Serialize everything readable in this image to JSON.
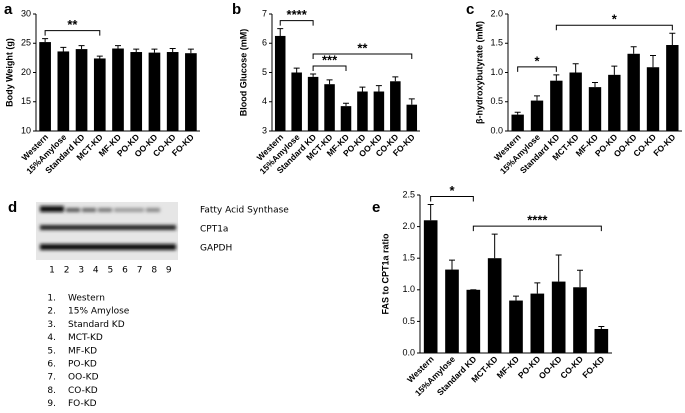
{
  "chart_data": [
    {
      "type": "bar",
      "panel_label": "a",
      "ylabel": "Body Weight (g)",
      "categories": [
        "Western",
        "15%Amylose",
        "Standard KD",
        "MCT-KD",
        "MF-KD",
        "PO-KD",
        "OO-KD",
        "CO-KD",
        "FO-KD"
      ],
      "values": [
        25.2,
        23.6,
        24.0,
        22.4,
        24.1,
        23.5,
        23.4,
        23.5,
        23.3
      ],
      "errors": [
        0.6,
        0.7,
        0.6,
        0.4,
        0.5,
        0.5,
        0.6,
        0.6,
        0.7
      ],
      "color": "#000000",
      "ylim": [
        10,
        30
      ],
      "yticks": [
        10,
        15,
        20,
        25,
        30
      ],
      "annotations": [
        {
          "text": "**",
          "from": "Western",
          "to": "MCT-KD"
        }
      ]
    },
    {
      "type": "bar",
      "panel_label": "b",
      "ylabel": "Blood Glucose (mM)",
      "categories": [
        "Western",
        "15%Amylose",
        "Standard KD",
        "MCT-KD",
        "MF-KD",
        "PO-KD",
        "OO-KD",
        "CO-KD",
        "FO-KD"
      ],
      "values": [
        6.25,
        5.0,
        4.85,
        4.6,
        3.85,
        4.35,
        4.35,
        4.7,
        3.9
      ],
      "errors": [
        0.25,
        0.15,
        0.1,
        0.15,
        0.1,
        0.15,
        0.2,
        0.15,
        0.2
      ],
      "color": "#000000",
      "ylim": [
        3,
        7
      ],
      "yticks": [
        3,
        4,
        5,
        6,
        7
      ],
      "annotations": [
        {
          "text": "****",
          "from": "Western",
          "to": "Standard KD"
        },
        {
          "text": "***",
          "from": "Standard KD",
          "to": "MF-KD"
        },
        {
          "text": "**",
          "from": "Standard KD",
          "to": "FO-KD"
        }
      ]
    },
    {
      "type": "bar",
      "panel_label": "c",
      "ylabel": "β-hydroxybutyrate (mM)",
      "categories": [
        "Western",
        "15%Amylose",
        "Standard KD",
        "MCT-KD",
        "MF-KD",
        "PO-KD",
        "OO-KD",
        "CO-KD",
        "FO-KD"
      ],
      "values": [
        0.28,
        0.52,
        0.86,
        1.0,
        0.75,
        0.96,
        1.32,
        1.09,
        1.47
      ],
      "errors": [
        0.04,
        0.08,
        0.1,
        0.15,
        0.08,
        0.15,
        0.12,
        0.2,
        0.2
      ],
      "color": "#000000",
      "ylim": [
        0,
        2
      ],
      "yticks": [
        {
          "value": 0,
          "label": "0.0"
        },
        0.5,
        {
          "value": 1,
          "label": "1.0"
        },
        1.5,
        {
          "value": 2,
          "label": "2.0"
        }
      ],
      "annotations": [
        {
          "text": "*",
          "from": "Western",
          "to": "Standard KD"
        },
        {
          "text": "*",
          "from": "Standard KD",
          "to": "FO-KD"
        }
      ]
    },
    {
      "type": "bar",
      "panel_label": "e",
      "ylabel": "FAS to CPT1a ratio",
      "categories": [
        "Western",
        "15%Amylose",
        "Standard KD",
        "MCT-KD",
        "MF-KD",
        "PO-KD",
        "OO-KD",
        "CO-KD",
        "FO-KD"
      ],
      "values": [
        2.1,
        1.32,
        1.0,
        1.5,
        0.83,
        0.94,
        1.13,
        1.04,
        0.38
      ],
      "errors": [
        0.25,
        0.15,
        0,
        0.38,
        0.07,
        0.17,
        0.42,
        0.27,
        0.04
      ],
      "color": "#000000",
      "ylim": [
        0,
        2.5
      ],
      "yticks": [
        {
          "value": 0,
          "label": "0.0"
        },
        0.5,
        {
          "value": 1,
          "label": "1.0"
        },
        1.5,
        {
          "value": 2,
          "label": "2.0"
        },
        2.5
      ],
      "annotations": [
        {
          "text": "*",
          "from": "Western",
          "to": "Standard KD"
        },
        {
          "text": "****",
          "from": "Standard KD",
          "to": "FO-KD"
        }
      ]
    }
  ],
  "blot": {
    "panel_label": "d",
    "bands": [
      "Fatty Acid Synthase",
      "CPT1a",
      "GAPDH"
    ],
    "lanes": [
      "1",
      "2",
      "3",
      "4",
      "5",
      "6",
      "7",
      "8",
      "9"
    ],
    "legend": [
      {
        "number": "1.",
        "label": "Western"
      },
      {
        "number": "2.",
        "label": "15% Amylose"
      },
      {
        "number": "3.",
        "label": "Standard KD"
      },
      {
        "number": "4.",
        "label": "MCT-KD"
      },
      {
        "number": "5.",
        "label": "MF-KD"
      },
      {
        "number": "6.",
        "label": "PO-KD"
      },
      {
        "number": "7.",
        "label": "OO-KD"
      },
      {
        "number": "8.",
        "label": "CO-KD"
      },
      {
        "number": "9.",
        "label": "FO-KD"
      }
    ]
  }
}
